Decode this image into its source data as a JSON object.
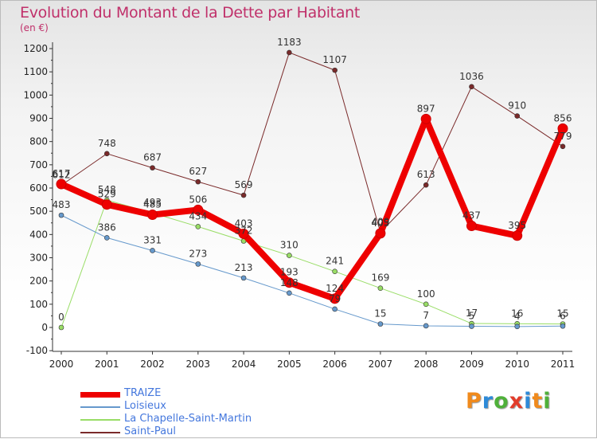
{
  "title": "Evolution du Montant de la Dette par Habitant",
  "unit": "(en €)",
  "brand": "Proxiti",
  "brand_colors": [
    "#f08a1c",
    "#2d8ad8",
    "#4fb03a",
    "#e23c2a",
    "#2d8ad8",
    "#f08a1c",
    "#4fb03a"
  ],
  "chart_data": {
    "type": "line",
    "x": [
      "2000",
      "2001",
      "2002",
      "2003",
      "2004",
      "2005",
      "2006",
      "2007",
      "2008",
      "2009",
      "2010",
      "2011"
    ],
    "ylim": [
      -100,
      1200
    ],
    "yticks": [
      -100,
      0,
      100,
      200,
      300,
      400,
      500,
      600,
      700,
      800,
      900,
      1000,
      1100,
      1200
    ],
    "grid": false,
    "legend_position": "bottom",
    "series": [
      {
        "name": "Saint-Paul",
        "color": "#7a2a2a",
        "width": 1,
        "marker": 3,
        "values": [
          612,
          748,
          687,
          627,
          569,
          1183,
          1107,
          409,
          613,
          1036,
          910,
          779
        ]
      },
      {
        "name": "La Chapelle-Saint-Martin",
        "color": "#99dd66",
        "width": 1,
        "marker": 3,
        "values": [
          0,
          548,
          493,
          434,
          372,
          310,
          241,
          169,
          100,
          17,
          16,
          15
        ]
      },
      {
        "name": "Loisieux",
        "color": "#6699cc",
        "width": 1,
        "marker": 3,
        "values": [
          483,
          386,
          331,
          273,
          213,
          148,
          79,
          15,
          7,
          5,
          4,
          6
        ]
      },
      {
        "name": "TRAIZE",
        "color": "#ee0000",
        "width": 8,
        "marker": 6,
        "values": [
          617,
          529,
          485,
          506,
          403,
          193,
          124,
          405,
          897,
          437,
          395,
          856
        ]
      }
    ],
    "legend_order": [
      "TRAIZE",
      "Loisieux",
      "La Chapelle-Saint-Martin",
      "Saint-Paul"
    ]
  }
}
